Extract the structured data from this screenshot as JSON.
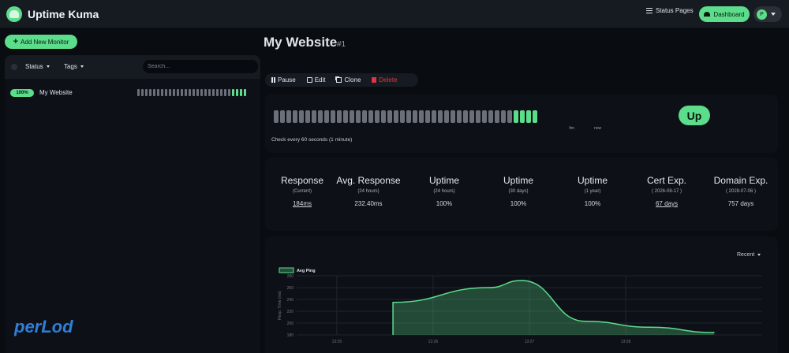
{
  "header": {
    "brand": "Uptime Kuma",
    "status_pages": "Status Pages",
    "dashboard": "Dashboard",
    "avatar_initial": "P"
  },
  "sidebar": {
    "add_monitor": "Add New Monitor",
    "filter_status": "Status",
    "filter_tags": "Tags",
    "search_placeholder": "Search...",
    "monitors": [
      {
        "name": "My Website",
        "uptime": "100%",
        "beats": [
          "down",
          "down",
          "down",
          "down",
          "down",
          "down",
          "down",
          "down",
          "down",
          "down",
          "down",
          "down",
          "down",
          "down",
          "down",
          "down",
          "down",
          "down",
          "down",
          "down",
          "down",
          "down",
          "down",
          "down",
          "up",
          "up",
          "up",
          "up"
        ]
      }
    ],
    "watermark": "perLod"
  },
  "main": {
    "title": "My Website",
    "id": "#1",
    "actions": {
      "pause": "Pause",
      "edit": "Edit",
      "clone": "Clone",
      "delete": "Delete"
    },
    "heartbeat": {
      "label_start": "4m",
      "label_end": "now",
      "check_interval": "Check every 60 seconds (1 minute)",
      "status": "Up",
      "total_beats": 42,
      "up_beats": 4
    },
    "stats": [
      {
        "title": "Response",
        "sub": "(Current)",
        "value": "184ms",
        "link": true
      },
      {
        "title": "Avg. Response",
        "sub": "(24 hours)",
        "value": "232.40ms",
        "link": false
      },
      {
        "title": "Uptime",
        "sub": "(24 hours)",
        "value": "100%",
        "link": false
      },
      {
        "title": "Uptime",
        "sub": "(30 days)",
        "value": "100%",
        "link": false
      },
      {
        "title": "Uptime",
        "sub": "(1 year)",
        "value": "100%",
        "link": false
      },
      {
        "title": "Cert Exp.",
        "sub": "( 2026-08-17 )",
        "value": "67 days",
        "link": true
      },
      {
        "title": "Domain Exp.",
        "sub": "( 2028-07-06 )",
        "value": "757 days",
        "link": false
      }
    ],
    "chart": {
      "period": "Recent"
    }
  },
  "chart_data": {
    "type": "area",
    "series": [
      {
        "name": "Avg Ping",
        "x": [
          "13:25:35",
          "13:26:35",
          "13:26:55",
          "13:27:35",
          "13:28:15",
          "13:28:55"
        ],
        "values": [
          235,
          260,
          272,
          203,
          193,
          184
        ]
      }
    ],
    "ylabel": "Resp. Time (ms)",
    "yticks": [
      180,
      200,
      220,
      240,
      260,
      280
    ],
    "xticks": [
      "13:25",
      "13:26",
      "13:27",
      "13:28"
    ],
    "ylim": [
      180,
      280
    ],
    "legend": "top-left",
    "color": "#5cdd8b",
    "grid": true
  },
  "colors": {
    "accent": "#5cdd8b",
    "danger": "#dc3545",
    "background": "#090c10"
  }
}
